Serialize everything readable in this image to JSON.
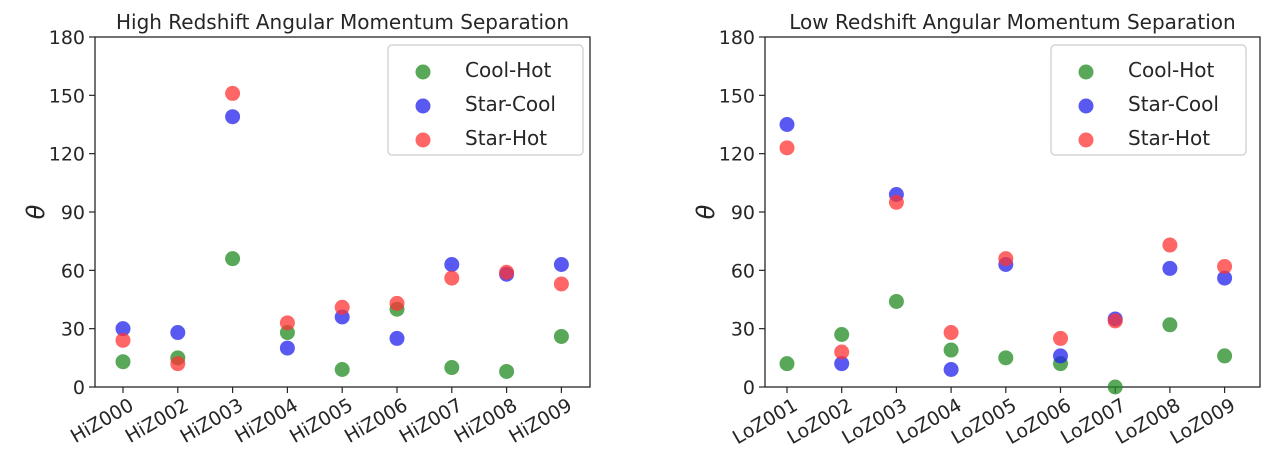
{
  "chart_data": [
    {
      "type": "scatter",
      "title": "High Redshift Angular Momentum Separation",
      "xlabel": "",
      "ylabel": "θ",
      "categories": [
        "HiZ000",
        "HiZ002",
        "HiZ003",
        "HiZ004",
        "HiZ005",
        "HiZ006",
        "HiZ007",
        "HiZ008",
        "HiZ009"
      ],
      "ylim": [
        0,
        180
      ],
      "yticks": [
        "0",
        "30",
        "60",
        "90",
        "120",
        "150",
        "180"
      ],
      "grid": false,
      "legend_position": "top-right",
      "series": [
        {
          "name": "Cool-Hot",
          "color": "#228b22",
          "values": [
            13,
            15,
            66,
            28,
            9,
            40,
            10,
            8,
            26
          ]
        },
        {
          "name": "Star-Cool",
          "color": "#2222ee",
          "values": [
            30,
            28,
            139,
            20,
            36,
            25,
            63,
            58,
            63
          ]
        },
        {
          "name": "Star-Hot",
          "color": "#ff3333",
          "values": [
            24,
            12,
            151,
            33,
            41,
            43,
            56,
            59,
            53
          ]
        }
      ]
    },
    {
      "type": "scatter",
      "title": "Low Redshift Angular Momentum Separation",
      "xlabel": "",
      "ylabel": "θ",
      "categories": [
        "LoZ001",
        "LoZ002",
        "LoZ003",
        "LoZ004",
        "LoZ005",
        "LoZ006",
        "LoZ007",
        "LoZ008",
        "LoZ009"
      ],
      "ylim": [
        0,
        180
      ],
      "yticks": [
        "0",
        "30",
        "60",
        "90",
        "120",
        "150",
        "180"
      ],
      "grid": false,
      "legend_position": "top-right",
      "series": [
        {
          "name": "Cool-Hot",
          "color": "#228b22",
          "values": [
            12,
            27,
            44,
            19,
            15,
            12,
            0,
            32,
            16
          ]
        },
        {
          "name": "Star-Cool",
          "color": "#2222ee",
          "values": [
            135,
            12,
            99,
            9,
            63,
            16,
            35,
            61,
            56
          ]
        },
        {
          "name": "Star-Hot",
          "color": "#ff3333",
          "values": [
            123,
            18,
            95,
            28,
            66,
            25,
            34,
            73,
            62
          ]
        }
      ]
    }
  ]
}
